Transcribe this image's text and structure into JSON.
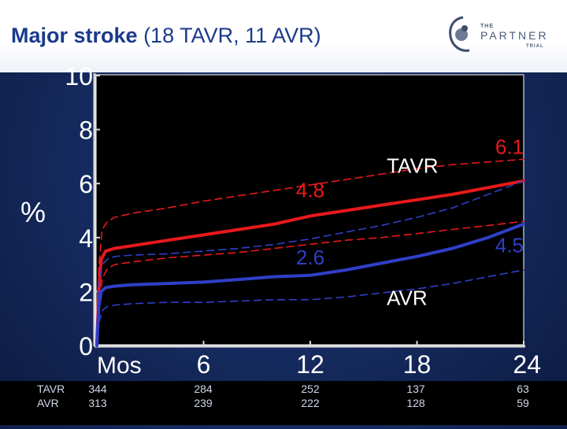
{
  "title": {
    "bold": "Major stroke",
    "rest": " (18 TAVR, 11 AVR)"
  },
  "logo": {
    "the": "THE",
    "name": "PARTNER",
    "trial": "TRIAL"
  },
  "colors": {
    "tavr": "#e8191c",
    "avr": "#2f3fc8",
    "plot_bg": "#000000",
    "title_text": "#1a3a8c"
  },
  "chart_data": {
    "type": "line",
    "ylabel": "%",
    "xlabel": "Mos",
    "xlim": [
      0,
      24
    ],
    "ylim": [
      0,
      10
    ],
    "x_ticks": [
      6,
      12,
      18,
      24
    ],
    "y_ticks": [
      0,
      2,
      4,
      6,
      8,
      10
    ],
    "series": [
      {
        "name": "TAVR",
        "style": "solid",
        "color": "#e8191c",
        "x": [
          0,
          0.1,
          0.25,
          0.5,
          1,
          2,
          4,
          6,
          8,
          10,
          12,
          14,
          16,
          18,
          20,
          22,
          24
        ],
        "y": [
          0,
          2.0,
          3.2,
          3.5,
          3.6,
          3.7,
          3.9,
          4.1,
          4.3,
          4.5,
          4.8,
          5.0,
          5.2,
          5.4,
          5.6,
          5.85,
          6.1
        ]
      },
      {
        "name": "",
        "style": "dashed",
        "color": "#e8191c",
        "x": [
          0,
          0.1,
          0.3,
          0.6,
          1,
          2,
          4,
          6,
          8,
          10,
          12,
          14,
          16,
          18,
          20,
          22,
          24
        ],
        "y": [
          0,
          2.9,
          4.3,
          4.6,
          4.75,
          4.9,
          5.1,
          5.35,
          5.55,
          5.75,
          5.95,
          6.15,
          6.35,
          6.55,
          6.7,
          6.8,
          6.9
        ]
      },
      {
        "name": "",
        "style": "dashed",
        "color": "#e8191c",
        "x": [
          0,
          0.1,
          0.3,
          0.6,
          1,
          2,
          4,
          6,
          8,
          10,
          12,
          14,
          16,
          18,
          20,
          22,
          24
        ],
        "y": [
          0,
          1.3,
          2.5,
          2.85,
          3.0,
          3.1,
          3.25,
          3.35,
          3.45,
          3.6,
          3.75,
          3.9,
          4.0,
          4.15,
          4.3,
          4.45,
          4.6
        ]
      },
      {
        "name": "AVR",
        "style": "solid",
        "color": "#2f3fc8",
        "x": [
          0,
          0.1,
          0.25,
          0.5,
          1,
          2,
          4,
          6,
          8,
          10,
          12,
          14,
          16,
          18,
          20,
          22,
          24
        ],
        "y": [
          0,
          1.4,
          2.0,
          2.15,
          2.2,
          2.25,
          2.3,
          2.35,
          2.45,
          2.55,
          2.6,
          2.8,
          3.05,
          3.3,
          3.6,
          4.0,
          4.5
        ]
      },
      {
        "name": "",
        "style": "dashed",
        "color": "#2f3fc8",
        "x": [
          0,
          0.1,
          0.3,
          0.6,
          1,
          2,
          4,
          6,
          8,
          10,
          12,
          14,
          16,
          18,
          20,
          22,
          24
        ],
        "y": [
          0,
          2.2,
          3.0,
          3.2,
          3.3,
          3.35,
          3.4,
          3.5,
          3.6,
          3.75,
          3.95,
          4.2,
          4.45,
          4.75,
          5.1,
          5.6,
          6.1
        ]
      },
      {
        "name": "",
        "style": "dashed",
        "color": "#2f3fc8",
        "x": [
          0,
          0.1,
          0.3,
          0.6,
          1,
          2,
          4,
          6,
          8,
          10,
          12,
          14,
          16,
          18,
          20,
          22,
          24
        ],
        "y": [
          0,
          0.8,
          1.3,
          1.45,
          1.5,
          1.55,
          1.6,
          1.6,
          1.65,
          1.7,
          1.7,
          1.8,
          1.95,
          2.1,
          2.3,
          2.55,
          2.8
        ]
      }
    ],
    "annotations": [
      {
        "text": "4.8",
        "x": 12,
        "y": 5.5,
        "color": "#e8191c",
        "anchor": "middle"
      },
      {
        "text": "6.1",
        "x": 22.4,
        "y": 7.1,
        "color": "#e8191c",
        "anchor": "start"
      },
      {
        "text": "TAVR",
        "x": 16.3,
        "y": 6.4,
        "color": "#ffffff",
        "anchor": "start"
      },
      {
        "text": "2.6",
        "x": 12,
        "y": 3.0,
        "color": "#2f3fc8",
        "anchor": "middle"
      },
      {
        "text": "4.5",
        "x": 22.4,
        "y": 3.45,
        "color": "#2f3fc8",
        "anchor": "start"
      },
      {
        "text": "AVR",
        "x": 16.3,
        "y": 1.5,
        "color": "#ffffff",
        "anchor": "start"
      }
    ]
  },
  "risk_table": {
    "rows": [
      {
        "label": "TAVR",
        "values": [
          "344",
          "284",
          "252",
          "137",
          "63"
        ]
      },
      {
        "label": "AVR",
        "values": [
          "313",
          "239",
          "222",
          "128",
          "59"
        ]
      }
    ]
  }
}
